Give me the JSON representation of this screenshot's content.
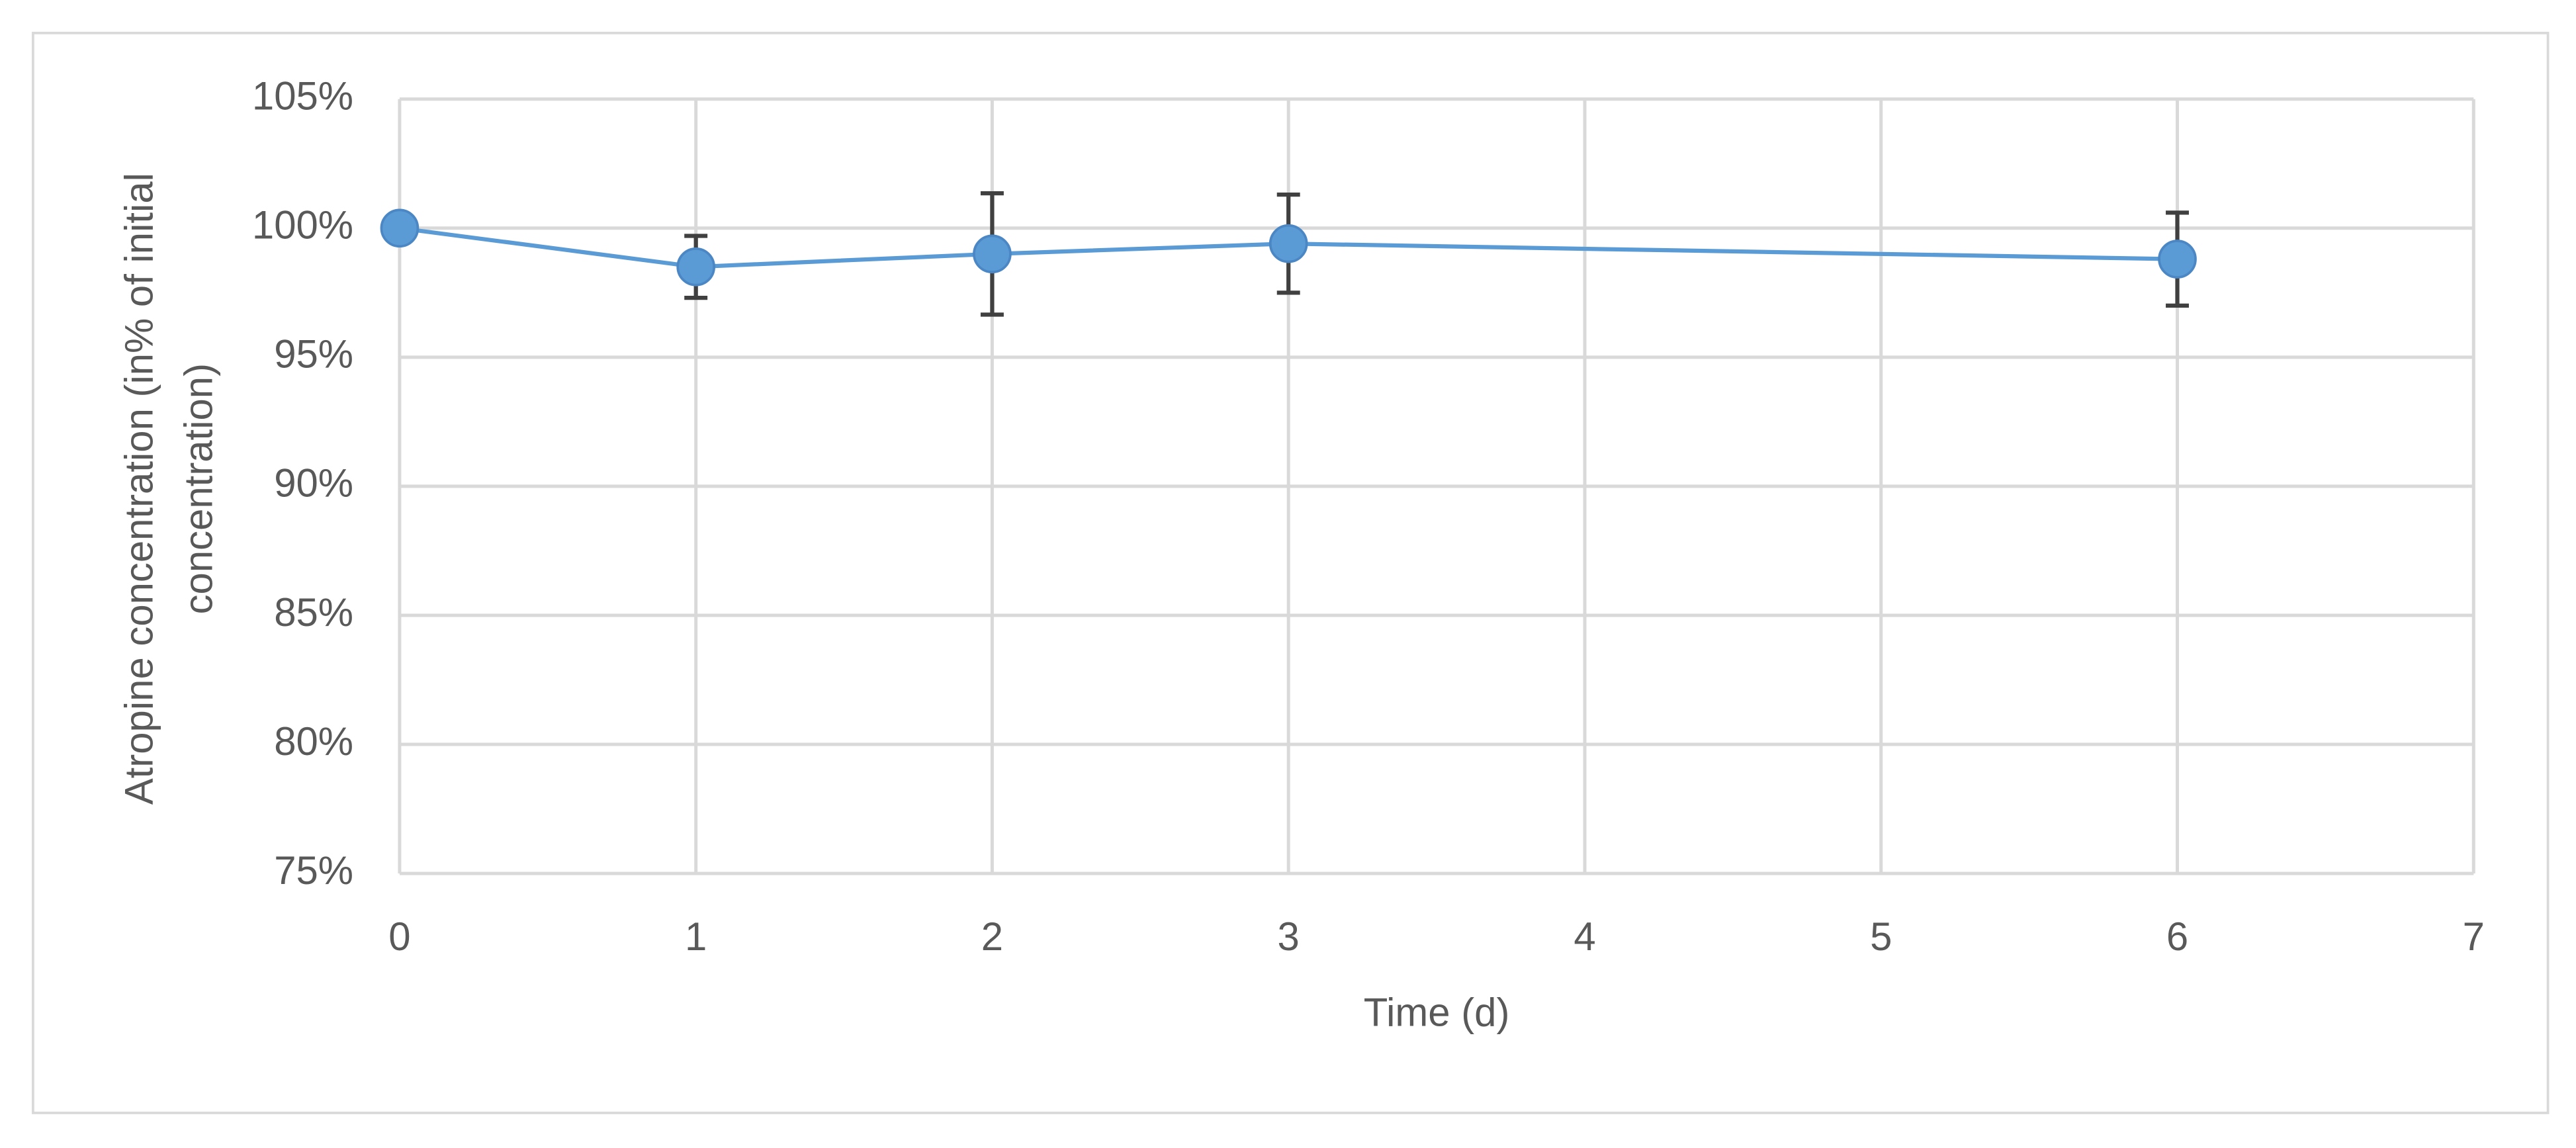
{
  "chart_data": {
    "type": "line",
    "xlabel": "Time (d)",
    "ylabel": [
      "Atropine concentration (in% of initial",
      "concentration)"
    ],
    "x": [
      0,
      1,
      2,
      3,
      6
    ],
    "series": [
      {
        "color": "#5b9bd5",
        "errorbar_color": "#404040",
        "values": [
          100,
          98.5,
          99.0,
          99.4,
          98.8
        ],
        "errors": [
          0,
          1.2,
          2.35,
          1.9,
          1.8
        ]
      }
    ],
    "xlim": [
      0,
      7
    ],
    "xticks": [
      0,
      1,
      2,
      3,
      4,
      5,
      6,
      7
    ],
    "ylim": [
      75,
      105
    ],
    "yticks": [
      {
        "value": 75,
        "label": "75%"
      },
      {
        "value": 80,
        "label": "80%"
      },
      {
        "value": 85,
        "label": "85%"
      },
      {
        "value": 90,
        "label": "90%"
      },
      {
        "value": 95,
        "label": "95%"
      },
      {
        "value": 100,
        "label": "100%"
      },
      {
        "value": 105,
        "label": "105%"
      }
    ],
    "grid": true
  }
}
